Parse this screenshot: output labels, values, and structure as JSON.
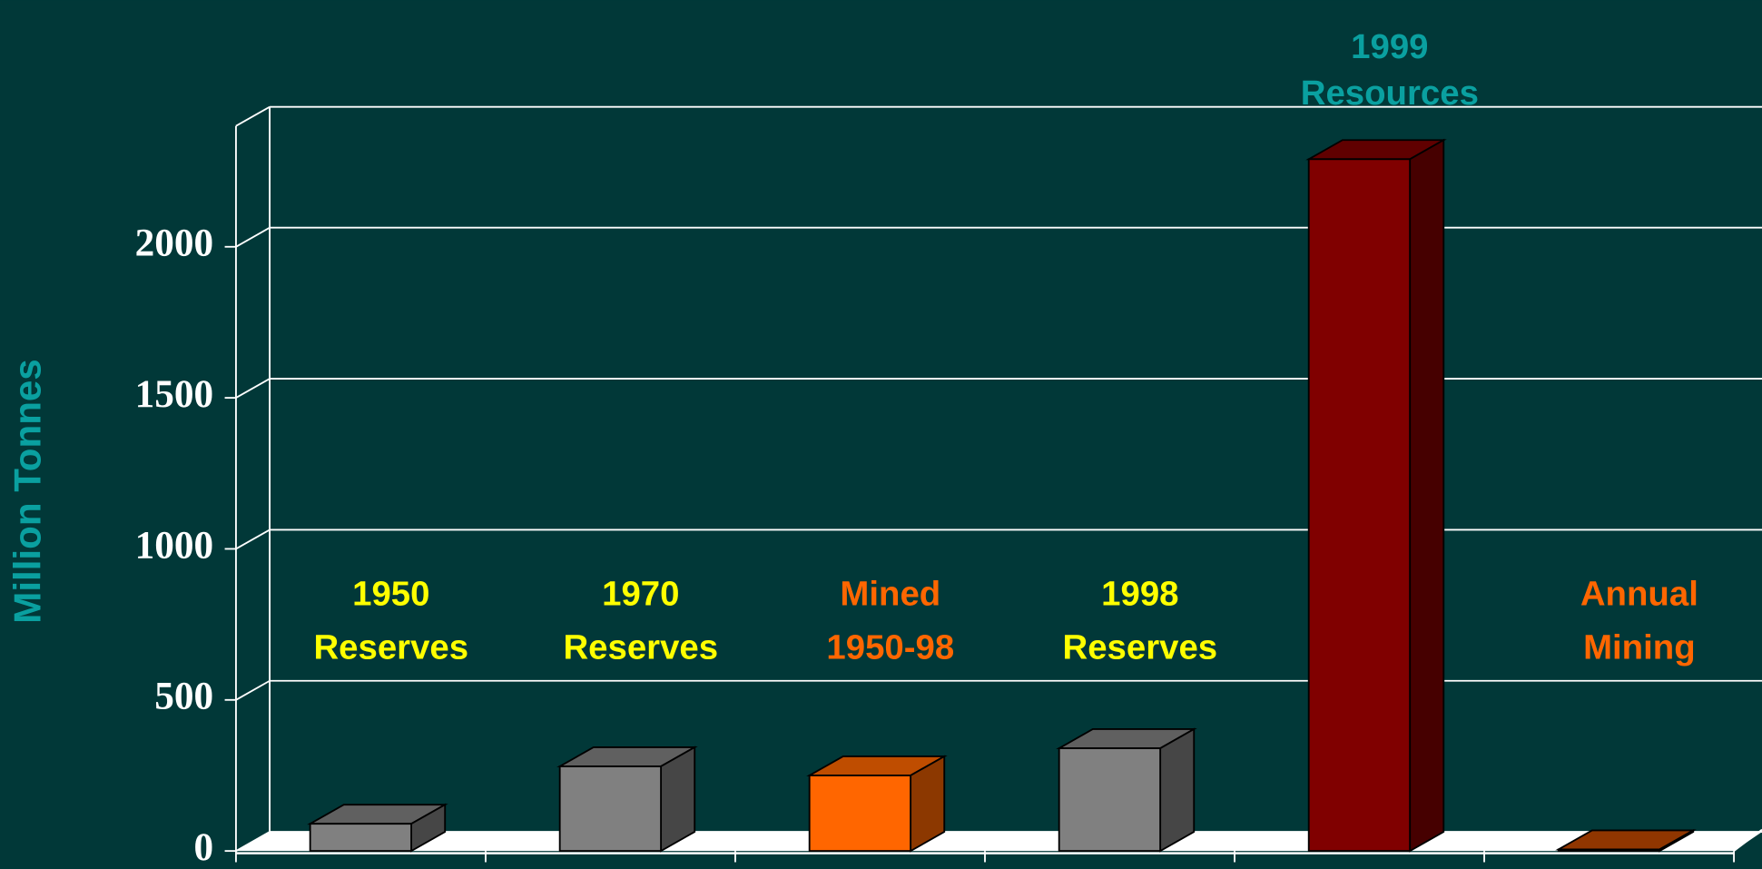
{
  "chart_data": {
    "type": "bar3d",
    "y_label": "Million Tonnes",
    "categories": [
      [
        "1950",
        "Reserves"
      ],
      [
        "1970",
        "Reserves"
      ],
      [
        "Mined",
        "1950-98"
      ],
      [
        "1998",
        "Reserves"
      ],
      [
        "1999",
        "Resources"
      ],
      [
        "Annual",
        "Mining"
      ]
    ],
    "values": [
      90,
      280,
      250,
      340,
      2290,
      5
    ],
    "colors": [
      "#808080",
      "#808080",
      "#ff6600",
      "#808080",
      "#800000",
      "#c04800"
    ],
    "label_colors": [
      "#ffff00",
      "#ffff00",
      "#ff6600",
      "#ffff00",
      "#0aa0a0",
      "#ff6600"
    ],
    "ylim": [
      0,
      2400
    ],
    "yticks": [
      0,
      500,
      1000,
      1500,
      2000
    ],
    "grid": true
  }
}
